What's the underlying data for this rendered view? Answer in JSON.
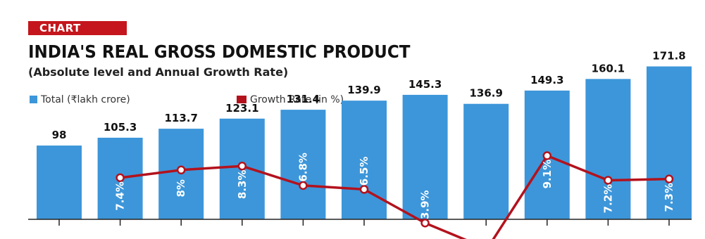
{
  "header": {
    "badge": "CHART",
    "title": "INDIA'S REAL GROSS DOMESTIC PRODUCT",
    "subtitle": "(Absolute level and Annual Growth Rate)"
  },
  "colors": {
    "bar": "#3d96d9",
    "line": "#b3121d",
    "badge": "#c4161c",
    "axis": "#222222",
    "label": "#111111",
    "inbar_label": "#ffffff"
  },
  "chart_data": {
    "type": "bar",
    "title": "INDIA'S REAL GROSS DOMESTIC PRODUCT",
    "subtitle": "(Absolute level and Annual Growth Rate)",
    "categories": [
      "",
      "",
      "",
      "",
      "",
      "",
      "",
      "",
      "",
      "",
      ""
    ],
    "series": [
      {
        "name": "Total (₹lakh crore)",
        "type": "bar",
        "values": [
          98,
          105.3,
          113.7,
          123.1,
          131.4,
          139.9,
          145.3,
          136.9,
          149.3,
          160.1,
          171.8
        ],
        "labels": [
          "98",
          "105.3",
          "113.7",
          "123.1",
          "131.4",
          "139.9",
          "145.3",
          "136.9",
          "149.3",
          "160.1",
          "171.8"
        ]
      },
      {
        "name": "Growth Rate (in %)",
        "type": "line",
        "values": [
          null,
          7.4,
          8,
          8.3,
          6.8,
          6.5,
          3.9,
          null,
          9.1,
          7.2,
          7.3
        ],
        "labels": [
          "",
          "7.4%",
          "8%",
          "8.3%",
          "6.8%",
          "6.5%",
          "3.9%",
          "",
          "9.1%",
          "7.2%",
          "7.3%"
        ]
      }
    ],
    "legend": {
      "position": "top-left",
      "items": [
        "Total (₹lakh crore)",
        "Growth Rate (in %)"
      ]
    },
    "grid": false,
    "xlabel": "",
    "ylabel": ""
  }
}
